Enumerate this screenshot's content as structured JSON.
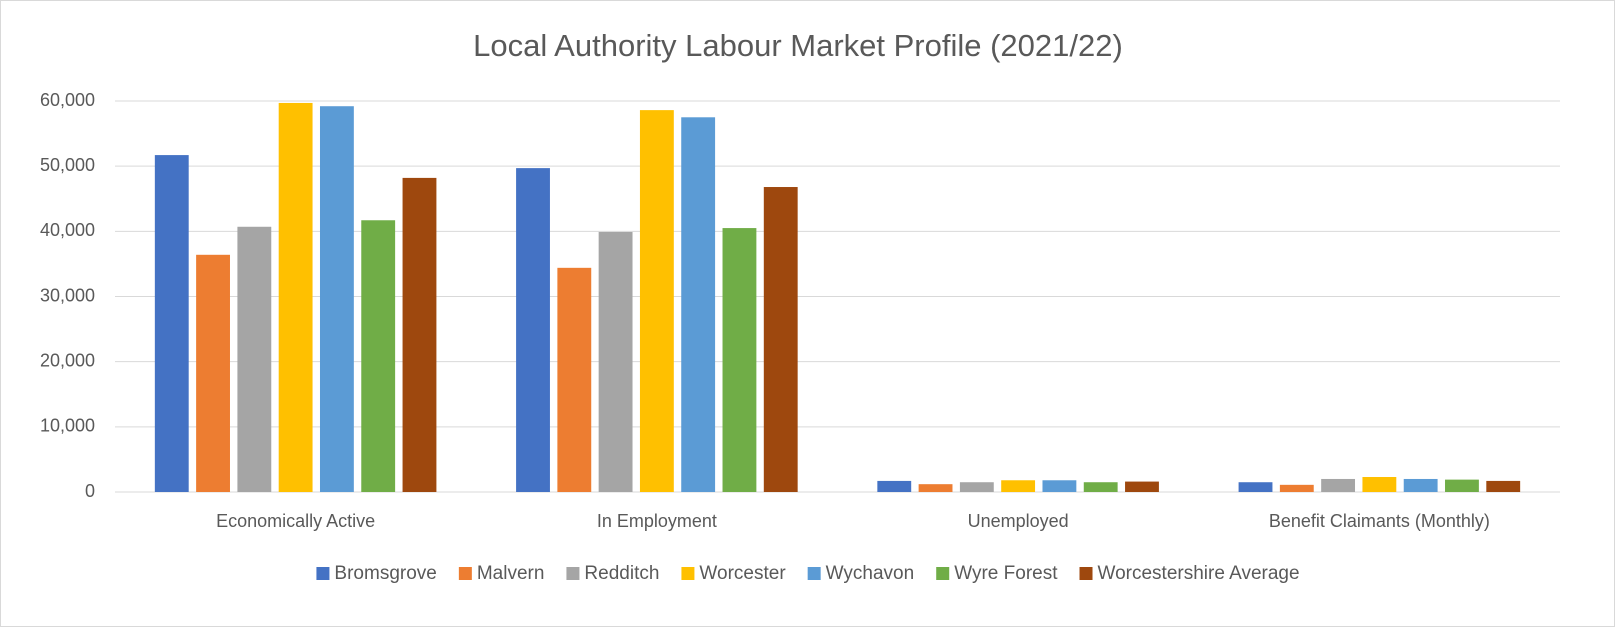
{
  "chart_data": {
    "type": "bar",
    "title": "Local Authority Labour Market Profile (2021/22)",
    "categories": [
      "Economically Active",
      "In Employment",
      "Unemployed",
      "Benefit Claimants (Monthly)"
    ],
    "series": [
      {
        "name": "Bromsgrove",
        "color": "#4472c4",
        "values": [
          51700,
          49700,
          1700,
          1500
        ]
      },
      {
        "name": "Malvern",
        "color": "#ed7d31",
        "values": [
          36400,
          34400,
          1200,
          1100
        ]
      },
      {
        "name": "Redditch",
        "color": "#a5a5a5",
        "values": [
          40700,
          39900,
          1500,
          2000
        ]
      },
      {
        "name": "Worcester",
        "color": "#ffc000",
        "values": [
          59700,
          58600,
          1800,
          2300
        ]
      },
      {
        "name": "Wychavon",
        "color": "#5b9bd5",
        "values": [
          59200,
          57500,
          1800,
          2000
        ]
      },
      {
        "name": "Wyre Forest",
        "color": "#70ad47",
        "values": [
          41700,
          40500,
          1500,
          1900
        ]
      },
      {
        "name": "Worcestershire Average",
        "color": "#9e480e",
        "values": [
          48200,
          46800,
          1600,
          1700
        ]
      }
    ],
    "ylim": [
      0,
      60000
    ],
    "yticks": [
      0,
      {
        "value": 10000,
        "label": "10,000"
      },
      {
        "value": 20000,
        "label": "20,000"
      },
      {
        "value": 30000,
        "label": "30,000"
      },
      {
        "value": 40000,
        "label": "40,000"
      },
      {
        "value": 50000,
        "label": "50,000"
      },
      {
        "value": 60000,
        "label": "60,000"
      }
    ],
    "grid": true,
    "legend": "bottom"
  }
}
